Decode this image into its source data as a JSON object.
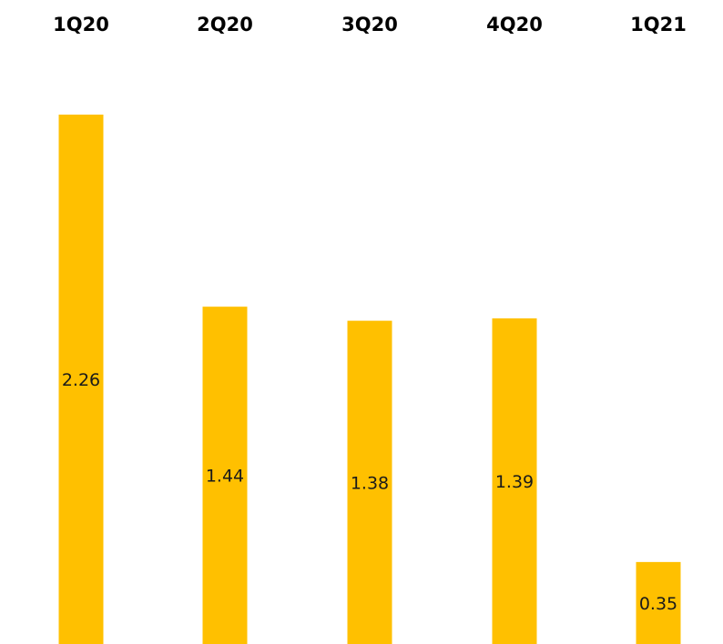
{
  "chart_data": {
    "type": "bar",
    "categories": [
      "1Q20",
      "2Q20",
      "3Q20",
      "4Q20",
      "1Q21"
    ],
    "values": [
      2.26,
      1.44,
      1.38,
      1.39,
      0.35
    ],
    "data_labels": [
      "2.26",
      "1.44",
      "1.38",
      "1.39",
      "0.35"
    ],
    "title": "",
    "xlabel": "",
    "ylabel": "",
    "grid": false,
    "legend": "none",
    "bar_color": "#FFC000"
  }
}
